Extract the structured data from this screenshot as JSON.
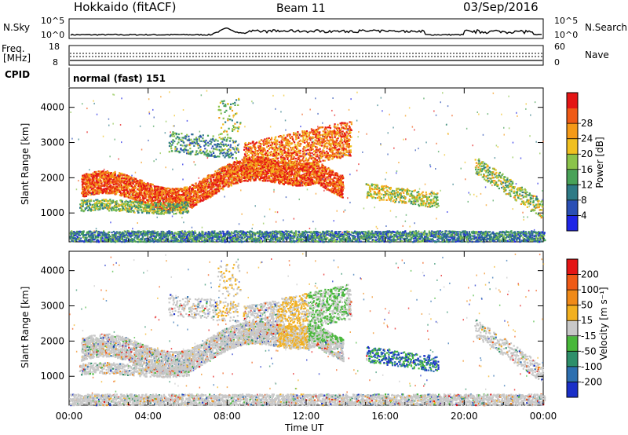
{
  "header": {
    "title": "Hokkaido (fitACF)",
    "beam": "Beam 11",
    "date": "03/Sep/2016"
  },
  "noise_panel": {
    "left_label": "N.Sky",
    "right_label": "N.Search",
    "left_ticks": [
      "10^5",
      "10^0"
    ],
    "right_ticks": [
      "10^5",
      "10^0"
    ]
  },
  "freq_panel": {
    "left_label_1": "Freq.",
    "left_label_2": "[MHz]",
    "left_ticks": [
      "18",
      "8"
    ],
    "right_label": "Nave",
    "right_ticks": [
      "60",
      "0"
    ]
  },
  "cpid_panel": {
    "label": "CPID",
    "value": "normal (fast) 151"
  },
  "x_axis": {
    "label": "Time UT",
    "ticks": [
      "00:00",
      "04:00",
      "08:00",
      "12:00",
      "16:00",
      "20:00",
      "00:00"
    ]
  },
  "chart_data": [
    {
      "type": "heatmap",
      "name": "power",
      "ylabel": "Slant Range [km]",
      "yticks": [
        "1000",
        "2000",
        "3000",
        "4000"
      ],
      "ylim": [
        180,
        4550
      ],
      "xlim_hours": [
        0,
        24
      ],
      "colorbar_label": "Power [dB]",
      "colorbar_ticks": [
        "4",
        "8",
        "12",
        "16",
        "20",
        "24",
        "28"
      ],
      "colorbar_colors": [
        "#1f25e6",
        "#2a4fb5",
        "#2e7a86",
        "#49a258",
        "#8bc34a",
        "#f0c020",
        "#f59a18",
        "#ef5a16",
        "#e41515"
      ]
    },
    {
      "type": "heatmap",
      "name": "velocity",
      "ylabel": "Slant Range [km]",
      "yticks": [
        "1000",
        "2000",
        "3000",
        "4000"
      ],
      "ylim": [
        180,
        4550
      ],
      "xlim_hours": [
        0,
        24
      ],
      "colorbar_label": "Velocity [m s⁻¹]",
      "colorbar_ticks": [
        "200",
        "100",
        "50",
        "15",
        "-15",
        "-50",
        "-100",
        "-200"
      ],
      "colorbar_colors": [
        "#1a2fc8",
        "#2d6fb0",
        "#2e8f6a",
        "#48b83a",
        "#c8c8c8",
        "#f2b020",
        "#f08a18",
        "#ef5a16",
        "#e41515"
      ]
    }
  ]
}
